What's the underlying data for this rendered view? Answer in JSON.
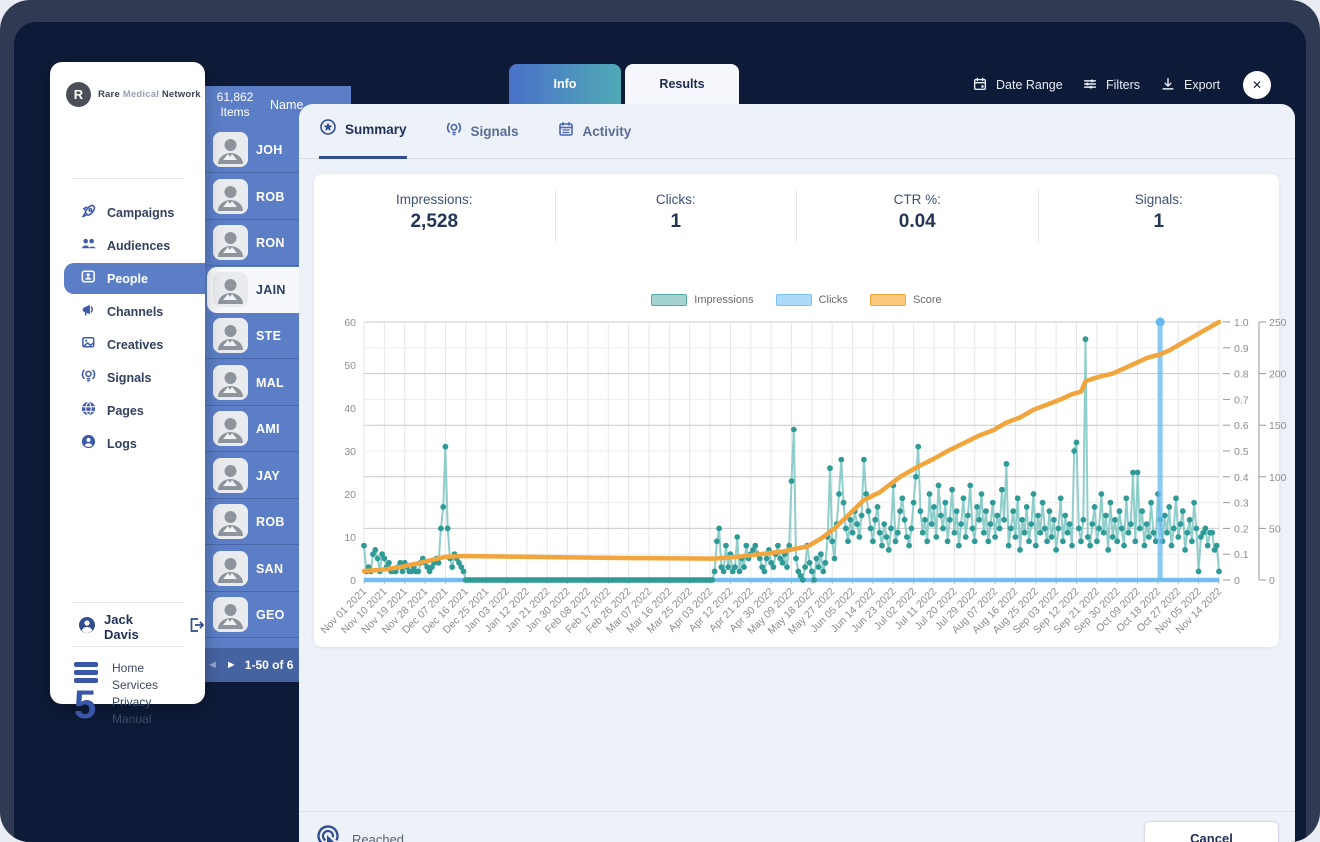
{
  "brand": {
    "mark": "R",
    "word1": "Rare",
    "word2": "Medical",
    "word3": "Network"
  },
  "sidebar": {
    "items": [
      {
        "label": "Campaigns",
        "icon": "rocket-icon",
        "active": false
      },
      {
        "label": "Audiences",
        "icon": "audiences-icon",
        "active": false
      },
      {
        "label": "People",
        "icon": "people-card-icon",
        "active": true
      },
      {
        "label": "Channels",
        "icon": "megaphone-icon",
        "active": false
      },
      {
        "label": "Creatives",
        "icon": "image-icon",
        "active": false
      },
      {
        "label": "Signals",
        "icon": "signal-bulb-icon",
        "active": false
      },
      {
        "label": "Pages",
        "icon": "globe-icon",
        "active": false
      },
      {
        "label": "Logs",
        "icon": "person-circle-icon",
        "active": false
      }
    ],
    "user": {
      "name": "Jack Davis"
    },
    "footer_links": [
      "Home",
      "Services",
      "Privacy",
      "Manual"
    ]
  },
  "people": {
    "count": "61,862",
    "count_label": "Items",
    "name_header": "Name",
    "rows": [
      {
        "name": "JOH"
      },
      {
        "name": "ROB"
      },
      {
        "name": "RON"
      },
      {
        "name": "JAIN"
      },
      {
        "name": "STE"
      },
      {
        "name": "MAL"
      },
      {
        "name": "AMI"
      },
      {
        "name": "JAY"
      },
      {
        "name": "ROB"
      },
      {
        "name": "SAN"
      },
      {
        "name": "GEO"
      }
    ],
    "selected_index": 3,
    "pagination": "1-50 of 6"
  },
  "topbar": {
    "tabs": [
      {
        "label": "Info"
      },
      {
        "label": "Results"
      }
    ],
    "actions": [
      {
        "label": "Date Range",
        "icon": "calendar-icon"
      },
      {
        "label": "Filters",
        "icon": "sliders-icon"
      },
      {
        "label": "Export",
        "icon": "download-icon"
      }
    ],
    "close": "✕"
  },
  "modal": {
    "tabs": [
      {
        "label": "Summary",
        "icon": "star-circle-icon",
        "active": true
      },
      {
        "label": "Signals",
        "icon": "signal-bulb-icon",
        "active": false
      },
      {
        "label": "Activity",
        "icon": "calendar-grid-icon",
        "active": false
      }
    ],
    "stats": [
      {
        "label": "Impressions:",
        "value": "2,528"
      },
      {
        "label": "Clicks:",
        "value": "1"
      },
      {
        "label": "CTR %:",
        "value": "0.04"
      },
      {
        "label": "Signals:",
        "value": "1"
      }
    ],
    "footer": {
      "status": "Reached",
      "cancel_label": "Cancel"
    }
  },
  "chart_data": {
    "type": "line",
    "title": "",
    "day_span": 378,
    "x_tick_labels": [
      "Nov 01 2021",
      "Nov 10 2021",
      "Nov 19 2021",
      "Nov 28 2021",
      "Dec 07 2021",
      "Dec 16 2021",
      "Dec 25 2021",
      "Jan 03 2022",
      "Jan 12 2022",
      "Jan 21 2022",
      "Jan 30 2022",
      "Feb 08 2022",
      "Feb 17 2022",
      "Feb 26 2022",
      "Mar 07 2022",
      "Mar 16 2022",
      "Mar 25 2022",
      "Apr 03 2022",
      "Apr 12 2022",
      "Apr 21 2022",
      "Apr 30 2022",
      "May 09 2022",
      "May 18 2022",
      "May 27 2022",
      "Jun 05 2022",
      "Jun 14 2022",
      "Jun 23 2022",
      "Jul 02 2022",
      "Jul 11 2022",
      "Jul 20 2022",
      "Jul 29 2022",
      "Aug 07 2022",
      "Aug 16 2022",
      "Aug 25 2022",
      "Sep 03 2022",
      "Sep 12 2022",
      "Sep 21 2022",
      "Sep 30 2022",
      "Oct 09 2022",
      "Oct 18 2022",
      "Oct 27 2022",
      "Nov 05 2022",
      "Nov 14 2022"
    ],
    "left_axis": {
      "min": 0,
      "max": 60,
      "ticks": [
        0,
        10,
        20,
        30,
        40,
        50,
        60
      ]
    },
    "right_axis_score": {
      "min": 0,
      "max": 1,
      "ticks": [
        "0",
        "0.1",
        "0.2",
        "0.3",
        "0.4",
        "0.5",
        "0.6",
        "0.7",
        "0.8",
        "0.9",
        "1.0"
      ]
    },
    "right_axis_extra": {
      "min": 0,
      "max": 250,
      "ticks": [
        0,
        50,
        100,
        150,
        200,
        250
      ]
    },
    "legend": [
      {
        "label": "Impressions",
        "fill": "#a5d3cf",
        "border": "#55aca6"
      },
      {
        "label": "Clicks",
        "fill": "#abd9f7",
        "border": "#7cc2f0"
      },
      {
        "label": "Score",
        "fill": "#f9c87d",
        "border": "#f0a43a"
      }
    ],
    "colors": {
      "impressions_line": "#7cc6c2",
      "impressions_dot": "#2f9a96",
      "clicks": "#67b9f0",
      "score": "#f1a53c"
    },
    "series": [
      {
        "name": "Impressions",
        "axis": "left",
        "values": [
          8,
          2,
          3,
          2,
          6,
          7,
          5,
          2,
          6,
          5,
          3,
          4,
          2,
          2,
          2,
          3,
          4,
          2,
          4,
          3,
          2,
          2,
          3,
          2,
          2,
          4,
          5,
          4,
          3,
          2,
          3,
          4,
          5,
          4,
          12,
          17,
          31,
          12,
          5,
          3,
          6,
          5,
          4,
          3,
          2,
          0,
          0,
          0,
          0,
          0,
          0,
          0,
          0,
          0,
          0,
          0,
          0,
          0,
          0,
          0,
          0,
          0,
          0,
          0,
          0,
          0,
          0,
          0,
          0,
          0,
          0,
          0,
          0,
          0,
          0,
          0,
          0,
          0,
          0,
          0,
          0,
          0,
          0,
          0,
          0,
          0,
          0,
          0,
          0,
          0,
          0,
          0,
          0,
          0,
          0,
          0,
          0,
          0,
          0,
          0,
          0,
          0,
          0,
          0,
          0,
          0,
          0,
          0,
          0,
          0,
          0,
          0,
          0,
          0,
          0,
          0,
          0,
          0,
          0,
          0,
          0,
          0,
          0,
          0,
          0,
          0,
          0,
          0,
          0,
          0,
          0,
          0,
          0,
          0,
          0,
          0,
          0,
          0,
          0,
          0,
          0,
          0,
          0,
          0,
          0,
          0,
          0,
          0,
          0,
          0,
          0,
          0,
          0,
          0,
          0,
          2,
          9,
          12,
          3,
          2,
          8,
          3,
          6,
          2,
          3,
          10,
          2,
          5,
          3,
          8,
          5,
          6,
          7,
          8,
          6,
          5,
          3,
          2,
          5,
          7,
          4,
          3,
          6,
          8,
          5,
          4,
          6,
          3,
          8,
          23,
          35,
          5,
          2,
          1,
          0,
          3,
          8,
          4,
          2,
          0,
          5,
          3,
          6,
          2,
          4,
          10,
          26,
          9,
          5,
          13,
          20,
          28,
          18,
          12,
          9,
          14,
          11,
          16,
          13,
          10,
          15,
          28,
          20,
          16,
          12,
          9,
          14,
          17,
          11,
          8,
          13,
          10,
          7,
          12,
          22,
          9,
          11,
          16,
          19,
          14,
          10,
          8,
          12,
          18,
          24,
          31,
          16,
          11,
          14,
          9,
          20,
          13,
          17,
          10,
          22,
          15,
          12,
          18,
          9,
          14,
          21,
          11,
          16,
          8,
          13,
          19,
          10,
          15,
          22,
          12,
          9,
          17,
          14,
          20,
          11,
          16,
          9,
          13,
          18,
          10,
          15,
          12,
          21,
          14,
          27,
          8,
          12,
          16,
          10,
          19,
          7,
          14,
          11,
          17,
          9,
          13,
          20,
          8,
          15,
          11,
          18,
          12,
          9,
          16,
          10,
          14,
          7,
          12,
          19,
          9,
          15,
          11,
          13,
          8,
          30,
          32,
          12,
          9,
          14,
          56,
          10,
          8,
          13,
          17,
          9,
          12,
          20,
          11,
          15,
          7,
          18,
          10,
          14,
          9,
          16,
          12,
          8,
          19,
          11,
          13,
          25,
          9,
          25,
          12,
          16,
          8,
          13,
          10,
          18,
          11,
          9,
          20,
          14,
          9,
          15,
          11,
          17,
          8,
          12,
          19,
          10,
          13,
          16,
          7,
          11,
          14,
          9,
          18,
          12,
          2,
          10,
          11,
          12,
          8,
          11,
          11,
          7,
          8,
          2
        ]
      },
      {
        "name": "Clicks",
        "axis": "score",
        "baseline": 0,
        "spike_day": 352,
        "spike_value": 1.0
      },
      {
        "name": "Score",
        "axis": "score",
        "points": [
          [
            0,
            0.035
          ],
          [
            8,
            0.04
          ],
          [
            16,
            0.05
          ],
          [
            24,
            0.065
          ],
          [
            30,
            0.078
          ],
          [
            36,
            0.09
          ],
          [
            45,
            0.093
          ],
          [
            70,
            0.09
          ],
          [
            100,
            0.087
          ],
          [
            130,
            0.084
          ],
          [
            155,
            0.083
          ],
          [
            165,
            0.09
          ],
          [
            175,
            0.1
          ],
          [
            185,
            0.11
          ],
          [
            190,
            0.12
          ],
          [
            196,
            0.13
          ],
          [
            202,
            0.16
          ],
          [
            208,
            0.2
          ],
          [
            214,
            0.25
          ],
          [
            221,
            0.31
          ],
          [
            228,
            0.34
          ],
          [
            237,
            0.4
          ],
          [
            245,
            0.44
          ],
          [
            252,
            0.47
          ],
          [
            258,
            0.5
          ],
          [
            265,
            0.53
          ],
          [
            272,
            0.56
          ],
          [
            278,
            0.58
          ],
          [
            284,
            0.61
          ],
          [
            290,
            0.63
          ],
          [
            296,
            0.66
          ],
          [
            302,
            0.68
          ],
          [
            308,
            0.7
          ],
          [
            313,
            0.72
          ],
          [
            317,
            0.73
          ],
          [
            319,
            0.77
          ],
          [
            322,
            0.78
          ],
          [
            326,
            0.79
          ],
          [
            331,
            0.8
          ],
          [
            336,
            0.82
          ],
          [
            341,
            0.84
          ],
          [
            346,
            0.86
          ],
          [
            352,
            0.875
          ],
          [
            356,
            0.89
          ],
          [
            360,
            0.91
          ],
          [
            364,
            0.93
          ],
          [
            368,
            0.95
          ],
          [
            372,
            0.97
          ],
          [
            375,
            0.985
          ],
          [
            378,
            1.0
          ]
        ]
      }
    ]
  }
}
